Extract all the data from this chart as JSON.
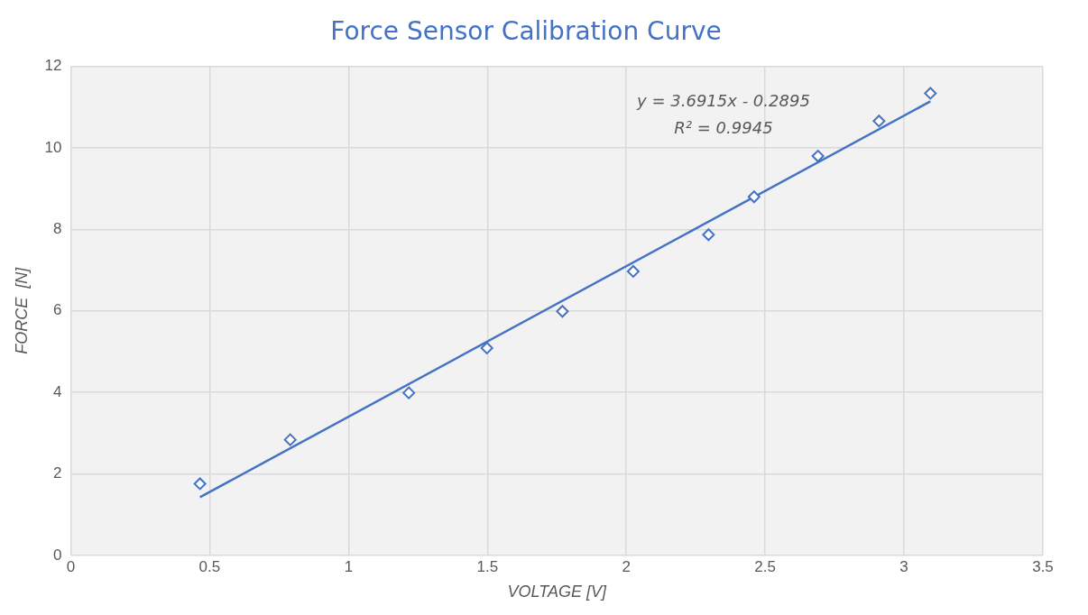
{
  "chart_data": {
    "type": "scatter",
    "title": "Force Sensor Calibration Curve",
    "xlabel": "VOLTAGE [V]",
    "ylabel": "FORCE  [N]",
    "xlim": [
      0,
      3.5
    ],
    "xticks": [
      0,
      0.5,
      1,
      1.5,
      2,
      2.5,
      3,
      3.5
    ],
    "ylim": [
      0,
      12
    ],
    "yticks": [
      0,
      2,
      4,
      6,
      8,
      10,
      12
    ],
    "grid": true,
    "legend": false,
    "annotations": [
      "y = 3.6915x - 0.2895",
      "R² = 0.9945"
    ],
    "series": [
      {
        "type": "scatter",
        "marker": "diamond",
        "color": "#4472c4",
        "x": [
          0.465,
          0.79,
          1.217,
          1.498,
          1.77,
          2.025,
          2.296,
          2.46,
          2.69,
          2.91,
          3.095
        ],
        "values": [
          1.76,
          2.84,
          3.99,
          5.09,
          5.99,
          6.97,
          7.87,
          8.8,
          9.8,
          10.66,
          11.34
        ]
      },
      {
        "type": "line",
        "marker": "none",
        "color": "#4472c4",
        "x": [
          0.465,
          3.095
        ],
        "values": [
          1.43,
          11.14
        ]
      }
    ]
  }
}
